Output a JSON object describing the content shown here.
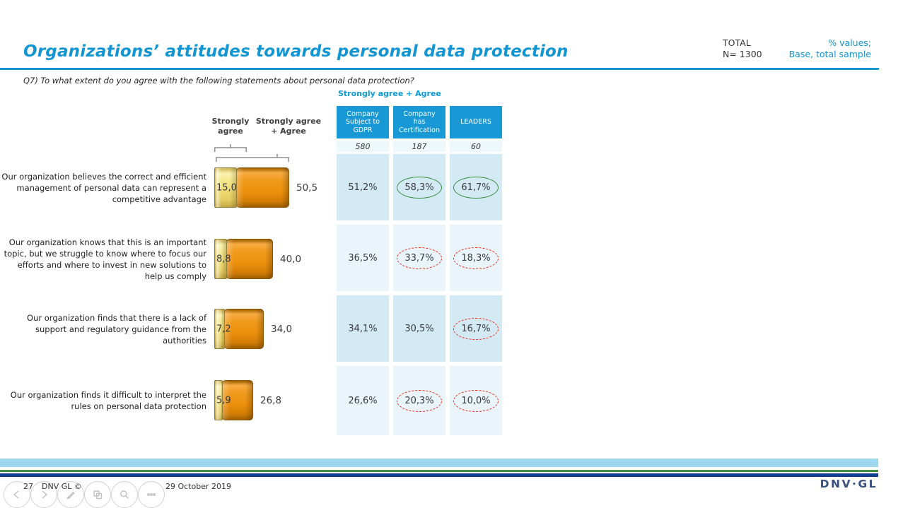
{
  "header": {
    "title": "Organizations’ attitudes towards personal data protection",
    "total_label": "TOTAL",
    "total_value": "N= 1300",
    "note1": "% values;",
    "note2": "Base, total sample"
  },
  "question": "Q7) To what extent do you agree with the following statements about personal data protection?",
  "chart": {
    "group_label": "Strongly agree + Agree",
    "legend_sa": "Strongly agree",
    "legend_total": "Strongly agree + Agree"
  },
  "columns": [
    {
      "label": "Company Subject to GDPR",
      "lines": [
        "Company",
        "Subject to",
        "GDPR"
      ],
      "base": "580"
    },
    {
      "label": "Company has Certification",
      "lines": [
        "Company",
        "has",
        "Certification"
      ],
      "base": "187"
    },
    {
      "label": "LEADERS",
      "lines": [
        "LEADERS"
      ],
      "base": "60"
    }
  ],
  "rows": [
    {
      "statement": "Our organization believes the correct and efficient management of personal data can represent a competitive advantage",
      "sa_label": "15,0",
      "total_label": "50,5",
      "cells": [
        "51,2%",
        "58,3%",
        "61,7%"
      ],
      "highlights": [
        "none",
        "green",
        "green"
      ]
    },
    {
      "statement": "Our organization knows that this is an important topic, but we struggle to know where to focus our efforts and where to invest in new solutions to help us comply",
      "sa_label": "8,8",
      "total_label": "40,0",
      "cells": [
        "36,5%",
        "33,7%",
        "18,3%"
      ],
      "highlights": [
        "none",
        "red",
        "red"
      ]
    },
    {
      "statement": "Our organization finds that there is a lack of support and regulatory guidance from the authorities",
      "sa_label": "7,2",
      "total_label": "34,0",
      "cells": [
        "34,1%",
        "30,5%",
        "16,7%"
      ],
      "highlights": [
        "none",
        "none",
        "red"
      ]
    },
    {
      "statement": "Our organization finds it difficult to interpret the rules on personal data protection",
      "sa_label": "5,9",
      "total_label": "26,8",
      "cells": [
        "26,6%",
        "20,3%",
        "10,0%"
      ],
      "highlights": [
        "none",
        "red",
        "red"
      ]
    }
  ],
  "footer": {
    "page": "27",
    "copyright": "DNV GL ©",
    "date": "29 October 2019",
    "logo": "DNV·GL",
    "nav_icons": [
      "previous-slide-icon",
      "next-slide-icon",
      "pen-icon",
      "slide-sorter-icon",
      "zoom-icon",
      "more-options-icon"
    ]
  },
  "colors": {
    "accent_blue": "#1296D3",
    "header_blue": "#1898D4",
    "cell_blue_dark": "#D3EAF5",
    "cell_blue_light": "#E9F5FB",
    "base_row_blue": "#EDF8FC",
    "bar_yellow": "#F0DC74",
    "bar_orange": "#EC8F0C",
    "circle_green": "#3C8C41",
    "circle_red": "#F02F1F",
    "stripe_lightblue": "#9DD8EF",
    "stripe_green": "#43903F",
    "stripe_navy": "#123E92",
    "logo_navy": "#39517E"
  },
  "chart_data": {
    "type": "bar",
    "orientation": "horizontal",
    "title": "Organizations’ attitudes towards personal data protection",
    "question": "Q7) To what extent do you agree with the following statements about personal data protection?",
    "total_n": 1300,
    "categories": [
      "Our organization believes the correct and efficient management of personal data can represent a competitive advantage",
      "Our organization knows that this is an important topic, but we struggle to know where to focus our efforts and where to invest in new solutions to help us comply",
      "Our organization finds that there is a lack of support and regulatory guidance from the authorities",
      "Our organization finds it difficult to interpret the rules on personal data protection"
    ],
    "series": [
      {
        "name": "Strongly agree",
        "values": [
          15.0,
          8.8,
          7.2,
          5.9
        ]
      },
      {
        "name": "Strongly agree + Agree",
        "values": [
          50.5,
          40.0,
          34.0,
          26.8
        ]
      }
    ],
    "xlim": [
      0,
      55
    ],
    "grid": false,
    "legend_position": "top-left brackets above bars",
    "data_labels": true,
    "comparison_table": {
      "header": "Strongly agree + Agree",
      "columns": [
        {
          "label": "Company Subject to GDPR",
          "base": 580,
          "values_pct": [
            51.2,
            36.5,
            34.1,
            26.6
          ],
          "highlights": [
            null,
            null,
            null,
            null
          ]
        },
        {
          "label": "Company has Certification",
          "base": 187,
          "values_pct": [
            58.3,
            33.7,
            30.5,
            20.3
          ],
          "highlights": [
            "green-circle",
            "red-dashed-circle",
            null,
            "red-dashed-circle"
          ]
        },
        {
          "label": "LEADERS",
          "base": 60,
          "values_pct": [
            61.7,
            18.3,
            16.7,
            10.0
          ],
          "highlights": [
            "green-circle",
            "red-dashed-circle",
            "red-dashed-circle",
            "red-dashed-circle"
          ]
        }
      ]
    }
  }
}
